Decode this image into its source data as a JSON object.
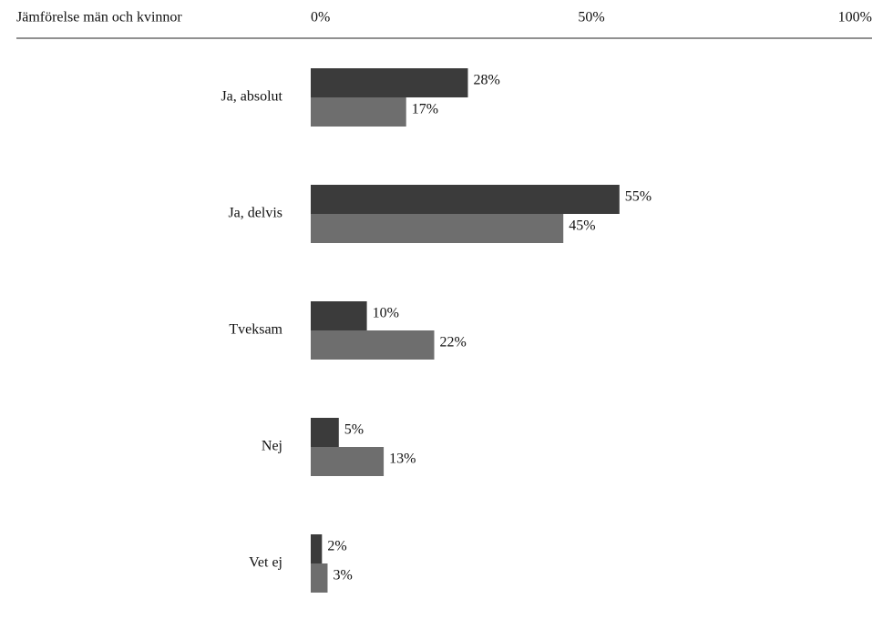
{
  "chart_data": {
    "type": "hbar",
    "title": "Jämförelse män och kvinnor",
    "categories": [
      "Ja, absolut",
      "Ja, delvis",
      "Tveksam",
      "Nej",
      "Vet ej"
    ],
    "series": [
      {
        "color": "#3b3b3b",
        "values": [
          28,
          55,
          10,
          5,
          2
        ],
        "value_labels": [
          "28%",
          "55%",
          "10%",
          "5%",
          "2%"
        ]
      },
      {
        "color": "#6e6e6e",
        "values": [
          17,
          45,
          22,
          13,
          3
        ],
        "value_labels": [
          "17%",
          "45%",
          "22%",
          "13%",
          "3%"
        ]
      }
    ],
    "xlim": [
      0,
      100
    ],
    "xticks": [
      {
        "value": 0,
        "label": "0%"
      },
      {
        "value": 50,
        "label": "50%"
      },
      {
        "value": 100,
        "label": "100%"
      }
    ],
    "grid": false
  }
}
